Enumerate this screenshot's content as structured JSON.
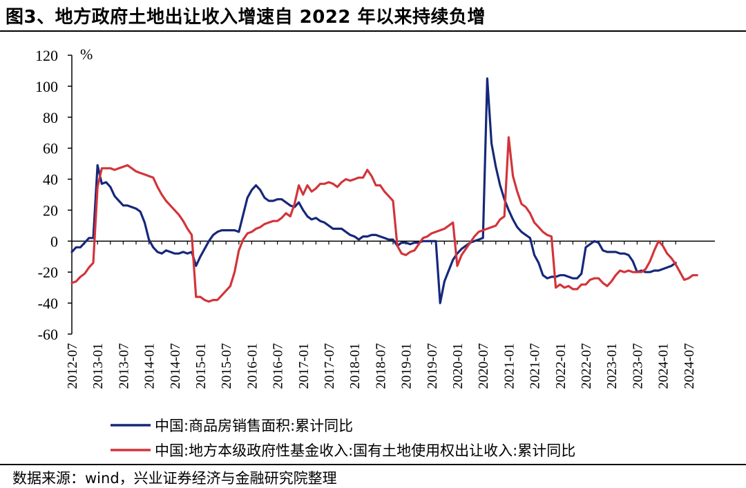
{
  "title": "图3、地方政府土地出让收入增速自 2022 年以来持续负增",
  "source": "数据来源：wind，兴业证券经济与金融研究院整理",
  "chart_data": {
    "type": "line",
    "title": "图3、地方政府土地出让收入增速自 2022 年以来持续负增",
    "ylabel": "%",
    "xlabel": "",
    "ylim": [
      -60,
      120
    ],
    "yticks": [
      120,
      100,
      80,
      60,
      40,
      20,
      0,
      -20,
      -40,
      -60
    ],
    "x_start": "2012-07",
    "x_tick_labels": [
      "2012-07",
      "2013-01",
      "2013-07",
      "2014-01",
      "2014-07",
      "2015-01",
      "2015-07",
      "2016-01",
      "2016-07",
      "2017-01",
      "2017-07",
      "2018-01",
      "2018-07",
      "2019-01",
      "2019-07",
      "2020-01",
      "2020-07",
      "2021-01",
      "2021-07",
      "2022-01",
      "2022-07",
      "2023-01",
      "2023-07",
      "2024-01",
      "2024-07"
    ],
    "legend_position": "bottom",
    "series": [
      {
        "name": "中国:商品房销售面积:累计同比",
        "color": "#16287a",
        "values": [
          -7,
          -4,
          -4,
          -1,
          2,
          2,
          49,
          37,
          38,
          35,
          29,
          26,
          23,
          23,
          22,
          21,
          19,
          12,
          1,
          -4,
          -7,
          -8,
          -6,
          -7,
          -8,
          -8,
          -7,
          -8,
          -7,
          -16,
          -10,
          -5,
          0,
          4,
          6,
          7,
          7,
          7,
          7,
          6,
          17,
          28,
          33,
          36,
          33,
          28,
          26,
          26,
          27,
          27,
          25,
          23,
          22,
          25,
          20,
          16,
          14,
          15,
          13,
          12,
          10,
          8,
          8,
          8,
          6,
          4,
          3,
          1,
          3,
          3,
          4,
          4,
          3,
          2,
          1,
          1,
          -3,
          -1,
          -1,
          -2,
          -1,
          -1,
          0,
          0,
          0,
          0,
          -40,
          -26,
          -19,
          -12,
          -8,
          -5,
          -3,
          -1,
          0,
          1,
          2,
          105,
          63,
          48,
          36,
          27,
          20,
          14,
          9,
          6,
          4,
          2,
          -9,
          -14,
          -22,
          -24,
          -23,
          -23,
          -22,
          -22,
          -23,
          -24,
          -24,
          -21,
          -4,
          -2,
          0,
          -1,
          -6,
          -7,
          -7,
          -7,
          -8,
          -8,
          -9,
          -13,
          -20,
          -19,
          -20,
          -20,
          -19,
          -19,
          -18,
          -17,
          -16,
          -14
        ]
      },
      {
        "name": "中国:地方本级政府性基金收入:国有土地使用权出让收入:累计同比",
        "color": "#d2343a",
        "values": [
          -27,
          -26,
          -23,
          -21,
          -17,
          -14,
          35,
          47,
          47,
          47,
          46,
          47,
          48,
          49,
          47,
          45,
          44,
          43,
          42,
          41,
          35,
          30,
          26,
          23,
          20,
          17,
          13,
          8,
          4,
          -36,
          -36,
          -38,
          -39,
          -38,
          -38,
          -35,
          -32,
          -29,
          -20,
          -6,
          1,
          5,
          6,
          8,
          9,
          11,
          12,
          13,
          13,
          15,
          18,
          16,
          24,
          36,
          30,
          36,
          32,
          34,
          37,
          37,
          38,
          37,
          35,
          38,
          40,
          39,
          40,
          41,
          41,
          46,
          42,
          36,
          36,
          32,
          29,
          26,
          -3,
          -8,
          -9,
          -7,
          -6,
          -2,
          2,
          3,
          5,
          6,
          7,
          8,
          10,
          12,
          -16,
          -9,
          -5,
          -1,
          3,
          6,
          7,
          8,
          9,
          10,
          14,
          16,
          67,
          42,
          32,
          24,
          22,
          18,
          12,
          9,
          6,
          4,
          3,
          -30,
          -28,
          -30,
          -29,
          -31,
          -31,
          -28,
          -28,
          -25,
          -24,
          -24,
          -27,
          -29,
          -26,
          -22,
          -19,
          -20,
          -19,
          -20,
          -20,
          -20,
          -18,
          -13,
          -6,
          0,
          -3,
          -8,
          -11,
          -15,
          -20,
          -25,
          -24,
          -22,
          -22
        ]
      }
    ]
  }
}
